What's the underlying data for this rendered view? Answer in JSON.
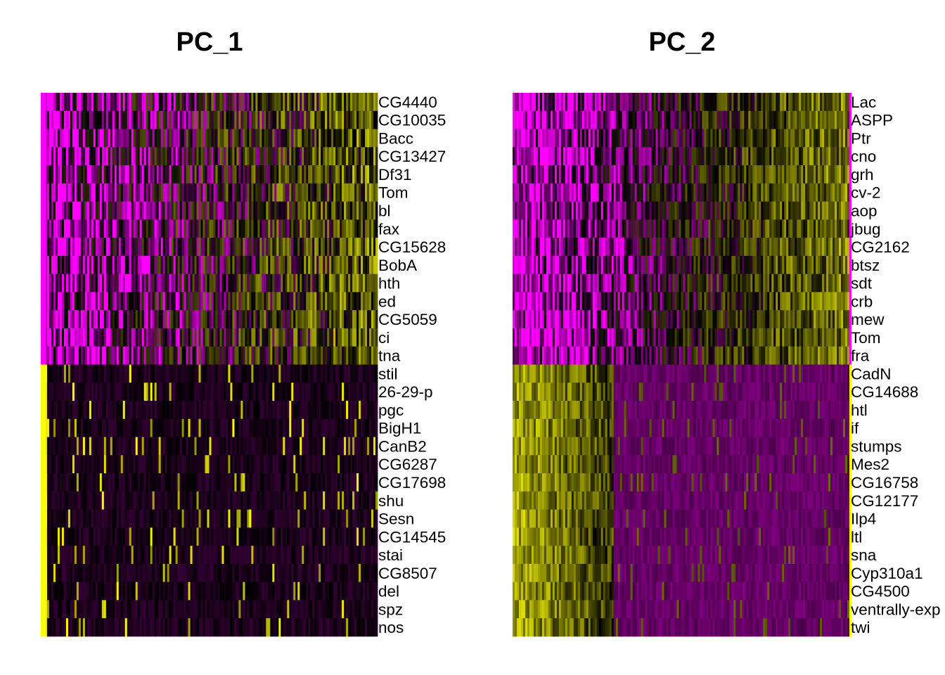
{
  "chart_data": [
    {
      "type": "heatmap",
      "title": "PC_1",
      "genes": [
        "CG4440",
        "CG10035",
        "Bacc",
        "CG13427",
        "Df31",
        "Tom",
        "bl",
        "fax",
        "CG15628",
        "BobA",
        "hth",
        "ed",
        "CG5059",
        "ci",
        "tna",
        "stil",
        "26-29-p",
        "pgc",
        "BigH1",
        "CanB2",
        "CG6287",
        "CG17698",
        "shu",
        "Sesn",
        "CG14545",
        "stai",
        "CG8507",
        "del",
        "spz",
        "nos"
      ],
      "group_sizes": [
        15,
        15
      ],
      "group_colors": [
        "#ff00ff",
        "#ffff00"
      ],
      "pattern": "top 15 genes mixed expression across cells; bottom 15 genes low expression with sparse high cells",
      "grid": false
    },
    {
      "type": "heatmap",
      "title": "PC_2",
      "genes": [
        "Lac",
        "ASPP",
        "Ptr",
        "cno",
        "grh",
        "cv-2",
        "aop",
        "jbug",
        "CG2162",
        "btsz",
        "sdt",
        "crb",
        "mew",
        "Tom",
        "fra",
        "CadN",
        "CG14688",
        "htl",
        "if",
        "stumps",
        "Mes2",
        "CG16758",
        "CG12177",
        "Ilp4",
        "ltl",
        "sna",
        "Cyp310a1",
        "CG4500",
        "ventrally-exp",
        "twi"
      ],
      "group_sizes": [
        15,
        15
      ],
      "group_colors": [
        "#ff00ff",
        "#ffff00"
      ],
      "pattern": "top 15 genes high in right-side cells, low on left; bottom 15 genes high in left-side cells, low on right",
      "grid": false
    }
  ],
  "color_scale": {
    "low": "#ff00ff",
    "mid": "#000000",
    "high": "#ffff00"
  }
}
